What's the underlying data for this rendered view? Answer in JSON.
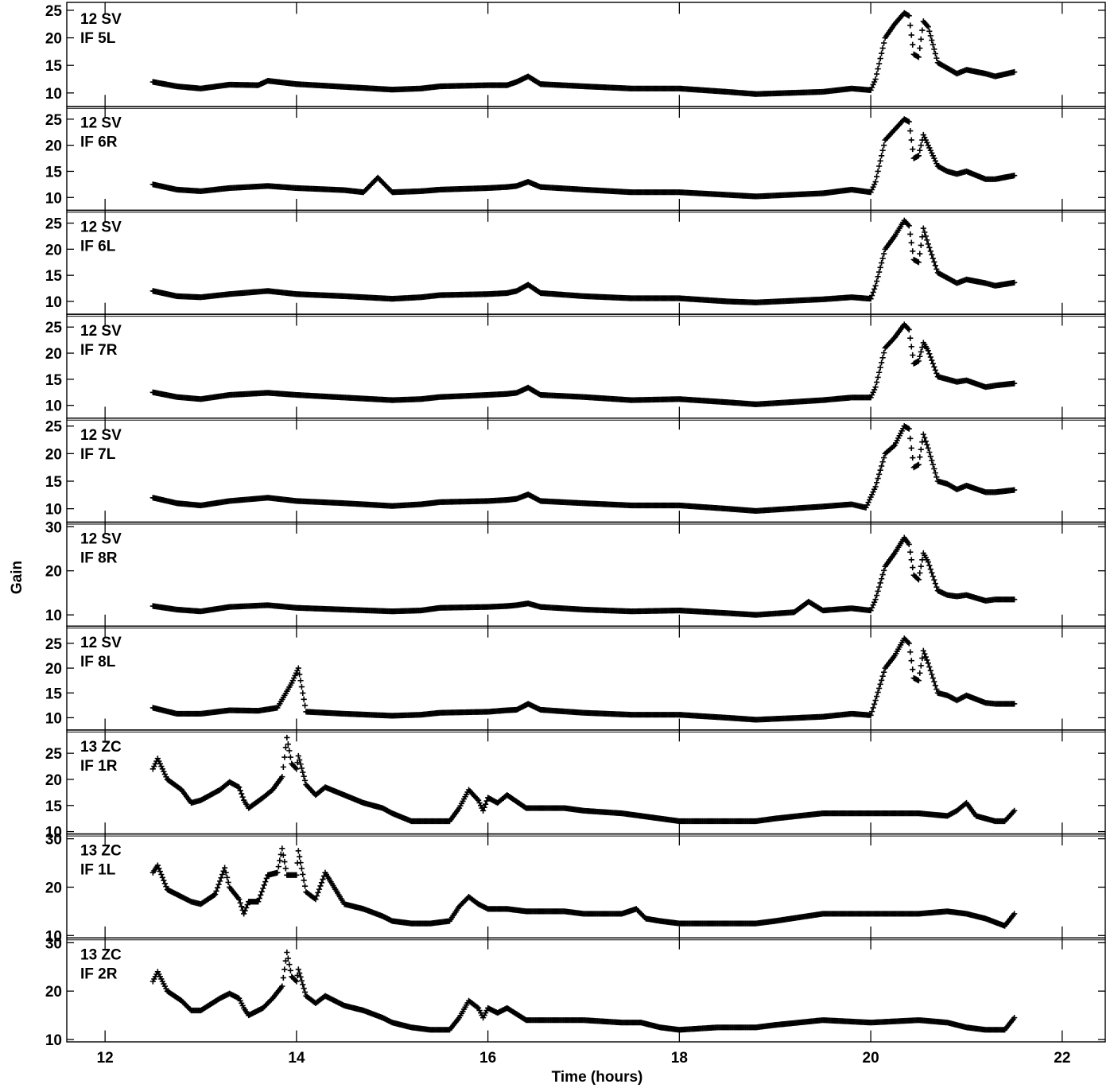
{
  "chart_data": {
    "type": "scatter",
    "xlabel": "Time (hours)",
    "ylabel": "Gain",
    "xlim": [
      11.6,
      22.45
    ],
    "xticks": [
      12,
      14,
      16,
      18,
      20,
      22
    ],
    "xtick_labels": [
      "12",
      "14",
      "16",
      "18",
      "20",
      "22"
    ],
    "marker": "+",
    "marker_color": "#000000",
    "panels": [
      {
        "station": "12 SV",
        "if": "IF 5L",
        "ylim": [
          8,
          26
        ],
        "yticks": [
          10,
          15,
          20,
          25
        ],
        "x": [
          12.5,
          12.75,
          13.0,
          13.3,
          13.6,
          13.7,
          14.0,
          14.5,
          15.0,
          15.3,
          15.5,
          16.0,
          16.2,
          16.3,
          16.42,
          16.55,
          17.0,
          17.5,
          18.0,
          18.5,
          18.8,
          19.5,
          19.8,
          20.0,
          20.05,
          20.15,
          20.25,
          20.35,
          20.4,
          20.45,
          20.5,
          20.55,
          20.6,
          20.7,
          20.8,
          20.9,
          21.0,
          21.2,
          21.3,
          21.5
        ],
        "y": [
          12.0,
          11.2,
          10.8,
          11.5,
          11.4,
          12.2,
          11.6,
          11.1,
          10.6,
          10.8,
          11.2,
          11.4,
          11.4,
          12.0,
          13.0,
          11.6,
          11.2,
          10.8,
          10.8,
          10.2,
          9.8,
          10.2,
          10.8,
          10.5,
          12.5,
          20.0,
          22.5,
          24.5,
          24.0,
          17.0,
          16.5,
          23.0,
          22.0,
          15.5,
          14.5,
          13.5,
          14.2,
          13.5,
          13.0,
          13.8
        ]
      },
      {
        "station": "12 SV",
        "if": "IF 6R",
        "ylim": [
          8,
          27
        ],
        "yticks": [
          10,
          15,
          20,
          25
        ],
        "x": [
          12.5,
          12.75,
          13.0,
          13.3,
          13.7,
          14.0,
          14.5,
          14.7,
          14.85,
          15.0,
          15.3,
          15.5,
          16.0,
          16.2,
          16.3,
          16.42,
          16.55,
          17.0,
          17.5,
          18.0,
          18.5,
          18.8,
          19.5,
          19.8,
          20.0,
          20.05,
          20.15,
          20.25,
          20.35,
          20.4,
          20.45,
          20.5,
          20.55,
          20.6,
          20.7,
          20.8,
          20.9,
          21.0,
          21.2,
          21.3,
          21.5
        ],
        "y": [
          12.5,
          11.5,
          11.2,
          11.8,
          12.2,
          11.8,
          11.4,
          11.0,
          13.8,
          11.0,
          11.2,
          11.5,
          11.8,
          12.0,
          12.2,
          13.0,
          12.0,
          11.5,
          11.0,
          11.0,
          10.5,
          10.2,
          10.8,
          11.5,
          11.0,
          13.0,
          21.0,
          23.0,
          25.0,
          24.5,
          17.5,
          18.0,
          22.0,
          20.0,
          16.0,
          15.0,
          14.5,
          15.0,
          13.5,
          13.5,
          14.2
        ]
      },
      {
        "station": "12 SV",
        "if": "IF 6L",
        "ylim": [
          8,
          27
        ],
        "yticks": [
          10,
          15,
          20,
          25
        ],
        "x": [
          12.5,
          12.75,
          13.0,
          13.3,
          13.7,
          14.0,
          14.5,
          15.0,
          15.3,
          15.5,
          16.0,
          16.2,
          16.3,
          16.42,
          16.55,
          17.0,
          17.5,
          18.0,
          18.5,
          18.8,
          19.5,
          19.8,
          20.0,
          20.05,
          20.15,
          20.25,
          20.35,
          20.4,
          20.45,
          20.5,
          20.55,
          20.6,
          20.7,
          20.8,
          20.9,
          21.0,
          21.2,
          21.3,
          21.5
        ],
        "y": [
          12.0,
          11.0,
          10.8,
          11.4,
          12.0,
          11.4,
          11.0,
          10.5,
          10.8,
          11.2,
          11.4,
          11.6,
          12.0,
          13.2,
          11.6,
          11.0,
          10.6,
          10.6,
          10.0,
          9.8,
          10.4,
          10.8,
          10.5,
          13.0,
          20.0,
          22.5,
          25.5,
          24.5,
          18.0,
          17.5,
          24.0,
          21.0,
          15.5,
          14.5,
          13.5,
          14.2,
          13.5,
          13.0,
          13.6
        ]
      },
      {
        "station": "12 SV",
        "if": "IF 7R",
        "ylim": [
          8,
          27
        ],
        "yticks": [
          10,
          15,
          20,
          25
        ],
        "x": [
          12.5,
          12.75,
          13.0,
          13.3,
          13.7,
          14.0,
          14.5,
          15.0,
          15.3,
          15.5,
          16.0,
          16.2,
          16.3,
          16.42,
          16.55,
          17.0,
          17.5,
          18.0,
          18.5,
          18.8,
          19.5,
          19.8,
          20.0,
          20.05,
          20.15,
          20.25,
          20.35,
          20.4,
          20.45,
          20.5,
          20.55,
          20.6,
          20.7,
          20.8,
          20.9,
          21.0,
          21.2,
          21.3,
          21.5
        ],
        "y": [
          12.5,
          11.6,
          11.2,
          12.0,
          12.4,
          12.0,
          11.5,
          11.0,
          11.2,
          11.6,
          12.0,
          12.2,
          12.4,
          13.4,
          12.0,
          11.6,
          11.0,
          11.2,
          10.6,
          10.2,
          11.0,
          11.5,
          11.5,
          13.5,
          21.0,
          23.0,
          25.5,
          24.5,
          18.0,
          18.5,
          22.0,
          20.5,
          15.5,
          15.0,
          14.5,
          14.8,
          13.5,
          13.8,
          14.2
        ]
      },
      {
        "station": "12 SV",
        "if": "IF 7L",
        "ylim": [
          8,
          26
        ],
        "yticks": [
          10,
          15,
          20,
          25
        ],
        "x": [
          12.5,
          12.75,
          13.0,
          13.3,
          13.7,
          14.0,
          14.5,
          15.0,
          15.3,
          15.5,
          16.0,
          16.2,
          16.3,
          16.42,
          16.55,
          17.0,
          17.5,
          18.0,
          18.5,
          18.8,
          19.5,
          19.8,
          19.95,
          20.05,
          20.15,
          20.25,
          20.35,
          20.4,
          20.45,
          20.5,
          20.55,
          20.6,
          20.7,
          20.8,
          20.9,
          21.0,
          21.2,
          21.3,
          21.5
        ],
        "y": [
          12.0,
          11.0,
          10.6,
          11.4,
          12.0,
          11.4,
          11.0,
          10.5,
          10.8,
          11.2,
          11.4,
          11.6,
          11.8,
          12.6,
          11.4,
          11.0,
          10.6,
          10.6,
          10.0,
          9.6,
          10.4,
          10.8,
          10.2,
          14.0,
          20.0,
          21.5,
          25.0,
          24.5,
          17.5,
          18.0,
          23.5,
          21.0,
          15.0,
          14.5,
          13.5,
          14.2,
          13.0,
          13.0,
          13.4
        ]
      },
      {
        "station": "12 SV",
        "if": "IF 8R",
        "ylim": [
          8,
          30.5
        ],
        "yticks": [
          10,
          20,
          30
        ],
        "x": [
          12.5,
          12.75,
          13.0,
          13.3,
          13.7,
          14.0,
          14.5,
          15.0,
          15.3,
          15.5,
          16.0,
          16.2,
          16.3,
          16.42,
          16.55,
          17.0,
          17.5,
          18.0,
          18.5,
          18.8,
          19.2,
          19.35,
          19.5,
          19.8,
          20.0,
          20.05,
          20.15,
          20.25,
          20.35,
          20.4,
          20.45,
          20.5,
          20.55,
          20.6,
          20.7,
          20.8,
          20.9,
          21.0,
          21.2,
          21.3,
          21.5
        ],
        "y": [
          12.0,
          11.2,
          10.8,
          11.8,
          12.2,
          11.6,
          11.2,
          10.8,
          11.0,
          11.6,
          11.8,
          12.0,
          12.2,
          12.6,
          11.8,
          11.2,
          10.8,
          11.0,
          10.4,
          10.0,
          10.6,
          13.0,
          11.0,
          11.5,
          11.0,
          13.5,
          21.0,
          24.0,
          27.5,
          26.0,
          19.0,
          18.0,
          24.0,
          22.0,
          15.5,
          14.5,
          14.2,
          14.5,
          13.2,
          13.5,
          13.5
        ]
      },
      {
        "station": "12 SV",
        "if": "IF 8L",
        "ylim": [
          8,
          28
        ],
        "yticks": [
          10,
          15,
          20,
          25
        ],
        "x": [
          12.5,
          12.75,
          13.0,
          13.3,
          13.6,
          13.8,
          13.95,
          14.02,
          14.1,
          14.5,
          15.0,
          15.3,
          15.5,
          16.0,
          16.2,
          16.3,
          16.42,
          16.55,
          17.0,
          17.5,
          18.0,
          18.5,
          18.8,
          19.5,
          19.8,
          20.0,
          20.05,
          20.15,
          20.25,
          20.35,
          20.4,
          20.45,
          20.5,
          20.55,
          20.6,
          20.7,
          20.8,
          20.9,
          21.0,
          21.2,
          21.3,
          21.5
        ],
        "y": [
          12.0,
          10.8,
          10.8,
          11.5,
          11.4,
          12.0,
          17.0,
          20.0,
          11.2,
          10.8,
          10.4,
          10.6,
          11.0,
          11.2,
          11.5,
          11.6,
          12.8,
          11.6,
          11.0,
          10.6,
          10.6,
          10.0,
          9.6,
          10.2,
          10.8,
          10.5,
          13.5,
          20.0,
          22.5,
          26.0,
          25.0,
          18.0,
          17.5,
          23.5,
          21.0,
          15.0,
          14.5,
          13.5,
          14.5,
          13.0,
          12.8,
          12.8
        ]
      },
      {
        "station": "13 ZC",
        "if": "IF 1R",
        "ylim": [
          10,
          29
        ],
        "yticks": [
          10,
          15,
          20,
          25
        ],
        "x": [
          12.5,
          12.55,
          12.65,
          12.8,
          12.9,
          13.0,
          13.2,
          13.3,
          13.4,
          13.45,
          13.5,
          13.65,
          13.75,
          13.85,
          13.9,
          13.95,
          14.0,
          14.02,
          14.1,
          14.2,
          14.3,
          14.5,
          14.7,
          14.9,
          15.0,
          15.2,
          15.4,
          15.6,
          15.7,
          15.8,
          15.9,
          15.95,
          16.0,
          16.1,
          16.2,
          16.4,
          16.8,
          17.0,
          17.4,
          17.6,
          17.8,
          18.0,
          18.4,
          18.8,
          19.0,
          19.5,
          20.0,
          20.5,
          20.8,
          20.9,
          21.0,
          21.1,
          21.3,
          21.4,
          21.5
        ],
        "y": [
          22.0,
          24.0,
          20.0,
          18.0,
          15.5,
          16.0,
          18.0,
          19.5,
          18.5,
          16.0,
          14.5,
          16.5,
          18.0,
          20.5,
          28.0,
          23.0,
          22.0,
          24.5,
          19.0,
          17.0,
          18.5,
          17.0,
          15.5,
          14.5,
          13.5,
          12.0,
          12.0,
          12.0,
          14.5,
          18.0,
          16.0,
          14.0,
          16.5,
          15.5,
          17.0,
          14.5,
          14.5,
          14.0,
          13.5,
          13.0,
          12.5,
          12.0,
          12.0,
          12.0,
          12.5,
          13.5,
          13.5,
          13.5,
          13.0,
          14.0,
          15.5,
          13.0,
          12.0,
          12.0,
          14.0
        ]
      },
      {
        "station": "13 ZC",
        "if": "IF 1L",
        "ylim": [
          10,
          30.5
        ],
        "yticks": [
          10,
          20,
          30
        ],
        "x": [
          12.5,
          12.55,
          12.65,
          12.8,
          12.9,
          13.0,
          13.15,
          13.25,
          13.3,
          13.4,
          13.45,
          13.5,
          13.6,
          13.7,
          13.8,
          13.85,
          13.9,
          14.0,
          14.02,
          14.1,
          14.2,
          14.3,
          14.5,
          14.7,
          14.9,
          15.0,
          15.2,
          15.4,
          15.6,
          15.7,
          15.8,
          15.9,
          16.0,
          16.2,
          16.4,
          16.8,
          17.0,
          17.4,
          17.55,
          17.65,
          17.8,
          18.0,
          18.4,
          18.8,
          19.0,
          19.5,
          20.0,
          20.5,
          20.8,
          21.0,
          21.2,
          21.4,
          21.5
        ],
        "y": [
          23.0,
          24.5,
          19.5,
          18.0,
          17.0,
          16.5,
          18.5,
          24.0,
          20.0,
          17.5,
          14.5,
          17.0,
          17.0,
          22.5,
          23.0,
          28.0,
          22.5,
          22.5,
          27.5,
          19.0,
          17.5,
          23.0,
          16.5,
          15.5,
          14.0,
          13.0,
          12.5,
          12.5,
          13.0,
          16.0,
          18.0,
          16.5,
          15.5,
          15.5,
          15.0,
          15.0,
          14.5,
          14.5,
          15.5,
          13.5,
          13.0,
          12.5,
          12.5,
          12.5,
          13.0,
          14.5,
          14.5,
          14.5,
          15.0,
          14.5,
          13.5,
          12.0,
          14.5
        ]
      },
      {
        "station": "13 ZC",
        "if": "IF 2R",
        "ylim": [
          10,
          30.5
        ],
        "yticks": [
          10,
          20,
          30
        ],
        "x": [
          12.5,
          12.55,
          12.65,
          12.8,
          12.9,
          13.0,
          13.2,
          13.3,
          13.4,
          13.45,
          13.5,
          13.65,
          13.75,
          13.85,
          13.9,
          13.95,
          14.0,
          14.02,
          14.1,
          14.2,
          14.3,
          14.5,
          14.7,
          14.9,
          15.0,
          15.2,
          15.4,
          15.6,
          15.7,
          15.8,
          15.9,
          15.95,
          16.0,
          16.1,
          16.2,
          16.4,
          16.8,
          17.0,
          17.4,
          17.6,
          17.8,
          18.0,
          18.4,
          18.8,
          19.0,
          19.5,
          20.0,
          20.5,
          20.8,
          21.0,
          21.2,
          21.4,
          21.5
        ],
        "y": [
          22.0,
          24.0,
          20.0,
          18.0,
          16.0,
          16.0,
          18.5,
          19.5,
          18.5,
          16.5,
          15.0,
          16.5,
          18.5,
          21.0,
          28.0,
          23.0,
          22.0,
          24.5,
          19.0,
          17.5,
          19.0,
          17.0,
          16.0,
          14.5,
          13.5,
          12.5,
          12.0,
          12.0,
          14.5,
          18.0,
          16.5,
          14.5,
          16.5,
          15.5,
          16.5,
          14.0,
          14.0,
          14.0,
          13.5,
          13.5,
          12.5,
          12.0,
          12.5,
          12.5,
          13.0,
          14.0,
          13.5,
          14.0,
          13.5,
          12.5,
          12.0,
          12.0,
          14.5
        ]
      }
    ]
  }
}
